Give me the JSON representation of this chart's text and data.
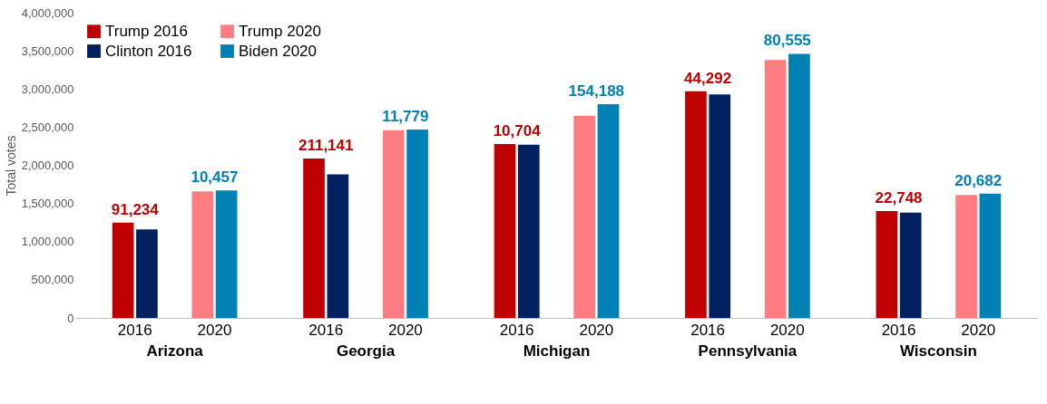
{
  "chart_data": {
    "type": "bar",
    "ylabel": "Total votes",
    "categories": [
      "2016",
      "2020",
      "2016",
      "2020",
      "2016",
      "2020",
      "2016",
      "2020",
      "2016",
      "2020"
    ],
    "series": [
      {
        "name": "Trump 2016",
        "color": "#c00000",
        "values": [
          1250000,
          null,
          2090000,
          null,
          2280000,
          null,
          2970000,
          null,
          1400000,
          null
        ]
      },
      {
        "name": "Clinton 2016",
        "color": "#002060",
        "values": [
          1160000,
          null,
          1880000,
          null,
          2270000,
          null,
          2930000,
          null,
          1380000,
          null
        ]
      },
      {
        "name": "Trump 2020",
        "color": "#ff7c80",
        "values": [
          null,
          1660000,
          null,
          2460000,
          null,
          2650000,
          null,
          3380000,
          null,
          1610000
        ]
      },
      {
        "name": "Biden 2020",
        "color": "#0080b4",
        "values": [
          null,
          1670000,
          null,
          2470000,
          null,
          2800000,
          null,
          3460000,
          null,
          1630000
        ]
      }
    ],
    "annotations": [
      "Arizona",
      "Georgia",
      "Michigan",
      "Pennsylvania",
      "Wisconsin",
      {
        "text": "91,234",
        "y": 1250000
      },
      {
        "text": "10,457",
        "y": 1670000
      },
      {
        "text": "211,141",
        "y": 2090000
      },
      {
        "text": "11,779",
        "y": 2470000
      },
      {
        "text": "10,704",
        "y": 2280000
      },
      {
        "text": "154,188",
        "y": 2800000
      },
      {
        "text": "44,292",
        "y": 2970000
      },
      {
        "text": "80,555",
        "y": 3460000
      },
      {
        "text": "22,748",
        "y": 1400000
      },
      {
        "text": "20,682",
        "y": 1630000
      }
    ],
    "ylim": [
      0,
      4000000
    ],
    "yticks": [
      0,
      {
        "value": 500000,
        "label": "500,000"
      },
      {
        "value": 1000000,
        "label": "1,000,000"
      },
      {
        "value": 1500000,
        "label": "1,500,000"
      },
      {
        "value": 2000000,
        "label": "2,000,000"
      },
      {
        "value": 2500000,
        "label": "2,500,000"
      },
      {
        "value": 3000000,
        "label": "3,000,000"
      },
      {
        "value": 3500000,
        "label": "3,500,000"
      },
      {
        "value": 4000000,
        "label": "4,000,000"
      }
    ],
    "grid": false,
    "legend": "top left"
  }
}
